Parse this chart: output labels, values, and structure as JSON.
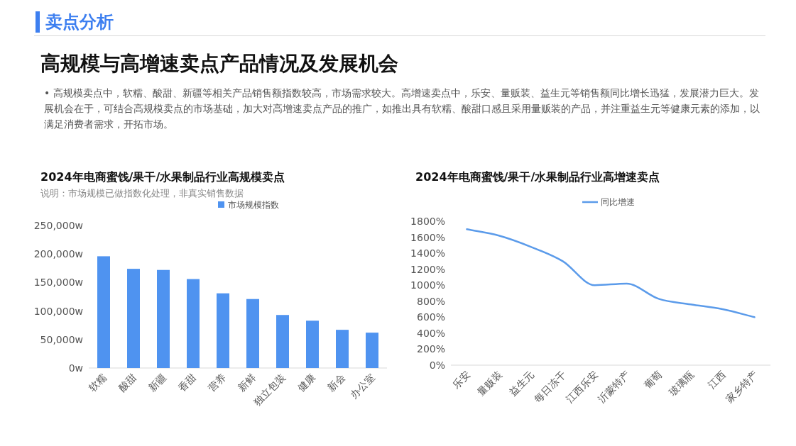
{
  "chart_data": [
    {
      "type": "other",
      "title": "卖点分析",
      "subtitle": "高规模与高增速卖点产品情况及发展机会",
      "annotations": [
        "• 高规模卖点中，软糯、酸甜、新疆等相关产品销售额指数较高，市场需求较大。高增速卖点中，乐安、量贩装、益生元等销售额同比增长迅猛，发展潜力巨大。发展机会在于，可结合高规模卖点的市场基础，加大对高增速卖点产品的推广，如推出具有软糯、酸甜口感且采用量贩装的产品，并注重益生元等健康元素的添加，以满足消费者需求，开拓市场。"
      ]
    },
    {
      "type": "bar",
      "title": "2024年电商蜜饯/果干/水果制品行业高规模卖点",
      "subtitle": "说明：市场规模已做指数化处理，非真实销售数据",
      "categories": [
        "软糯",
        "酸甜",
        "新疆",
        "香甜",
        "营养",
        "新鲜",
        "独立包装",
        "健康",
        "新会",
        "办公室"
      ],
      "series": [
        {
          "name": "市场规模指数",
          "color": "#4f93f0",
          "values": [
            196000,
            174000,
            172000,
            156000,
            131000,
            121000,
            93000,
            83000,
            67000,
            62000
          ]
        }
      ],
      "ylim": [
        0,
        250000
      ],
      "yticks": [
        {
          "value": 0,
          "label": "0w"
        },
        {
          "value": 50000,
          "label": "50,000w"
        },
        {
          "value": 100000,
          "label": "100,000w"
        },
        {
          "value": 150000,
          "label": "150,000w"
        },
        {
          "value": 200000,
          "label": "200,000w"
        },
        {
          "value": 250000,
          "label": "250,000w"
        }
      ],
      "grid": false,
      "legend": "top"
    },
    {
      "type": "line",
      "title": "2024年电商蜜饯/果干/水果制品行业高增速卖点",
      "categories": [
        "乐安",
        "量贩装",
        "益生元",
        "每日冻干",
        "江西乐安",
        "沂蒙特产",
        "葡萄",
        "玻璃瓶",
        "江西",
        "家乡特产"
      ],
      "series": [
        {
          "name": "同比增速",
          "color": "#5b9bea",
          "values": [
            1700,
            1620,
            1480,
            1300,
            1000,
            1020,
            830,
            760,
            700,
            600
          ]
        }
      ],
      "ylim": [
        0,
        1800
      ],
      "yticks": [
        {
          "value": 0,
          "label": "0%"
        },
        {
          "value": 200,
          "label": "200%"
        },
        {
          "value": 400,
          "label": "400%"
        },
        {
          "value": 600,
          "label": "600%"
        },
        {
          "value": 800,
          "label": "800%"
        },
        {
          "value": 1000,
          "label": "1000%"
        },
        {
          "value": 1200,
          "label": "1200%"
        },
        {
          "value": 1400,
          "label": "1400%"
        },
        {
          "value": 1600,
          "label": "1600%"
        },
        {
          "value": 1800,
          "label": "1800%"
        }
      ],
      "grid": false,
      "legend": "top"
    }
  ]
}
